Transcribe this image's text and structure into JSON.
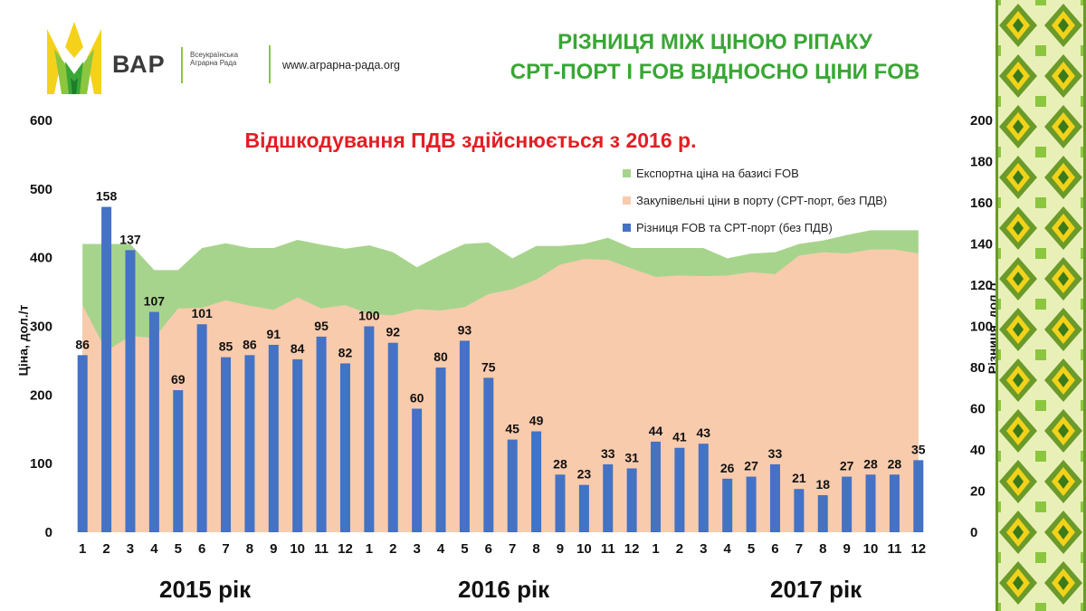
{
  "brand": {
    "name": "ВАР",
    "full_name": "Всеукраїнська Аграрна Рада",
    "url": "www.аграрна-рада.org"
  },
  "title_line1": "РІЗНИЦЯ МІЖ ЦІНОЮ РІПАКУ",
  "title_line2": "СРТ-ПОРТ І FOB ВІДНОСНО ЦІНИ FOB",
  "subtitle": "Відшкодування ПДВ здійснюється з 2016 р.",
  "years": [
    "2015 рік",
    "2016 рік",
    "2017 рік"
  ],
  "colors": {
    "title": "#3aa635",
    "subtitle": "#e31e24",
    "fob_area": "#a7d48c",
    "cpt_area": "#f8cbad",
    "bars": "#4472c4"
  },
  "chart_data": {
    "type": "bar",
    "categories": [
      "1",
      "2",
      "3",
      "4",
      "5",
      "6",
      "7",
      "8",
      "9",
      "10",
      "11",
      "12",
      "1",
      "2",
      "3",
      "4",
      "5",
      "6",
      "7",
      "8",
      "9",
      "10",
      "11",
      "12",
      "1",
      "2",
      "3",
      "4",
      "5",
      "6",
      "7",
      "8",
      "9",
      "10",
      "11",
      "12"
    ],
    "ylabel": "Ціна, дол./т",
    "ylabel_right": "Різниця, дол./т",
    "ylim": [
      0,
      600
    ],
    "yticks": [
      0,
      100,
      200,
      300,
      400,
      500,
      600
    ],
    "ylim_right": [
      0,
      200
    ],
    "yticks_right": [
      0,
      20,
      40,
      60,
      80,
      100,
      120,
      140,
      160,
      180,
      200
    ],
    "series": [
      {
        "name": "Експортна ціна на базисі FOB",
        "type": "area",
        "axis": "left",
        "values": [
          420,
          420,
          420,
          382,
          382,
          414,
          421,
          414,
          414,
          426,
          419,
          413,
          418,
          408,
          386,
          404,
          420,
          422,
          399,
          417,
          417,
          420,
          429,
          414,
          414,
          414,
          414,
          399,
          406,
          408,
          420,
          425,
          433,
          440,
          440,
          440
        ]
      },
      {
        "name": "Закупівельні ціни в порту (СРТ-порт, без ПДВ)",
        "type": "area",
        "axis": "left",
        "values": [
          331,
          264,
          286,
          283,
          326,
          327,
          338,
          330,
          324,
          342,
          326,
          331,
          318,
          316,
          325,
          323,
          328,
          347,
          354,
          368,
          390,
          398,
          397,
          384,
          372,
          374,
          373,
          374,
          379,
          376,
          403,
          408,
          406,
          412,
          412,
          406
        ]
      },
      {
        "name": "Різниця FOB та СРТ-порт (без ПДВ)",
        "type": "bar",
        "axis": "right",
        "values": [
          86,
          158,
          137,
          107,
          69,
          101,
          85,
          86,
          91,
          84,
          95,
          82,
          100,
          92,
          60,
          80,
          93,
          75,
          45,
          49,
          28,
          23,
          33,
          31,
          44,
          41,
          43,
          26,
          27,
          33,
          21,
          18,
          27,
          28,
          28,
          35
        ]
      }
    ],
    "legend": "top-right",
    "grid": false
  }
}
